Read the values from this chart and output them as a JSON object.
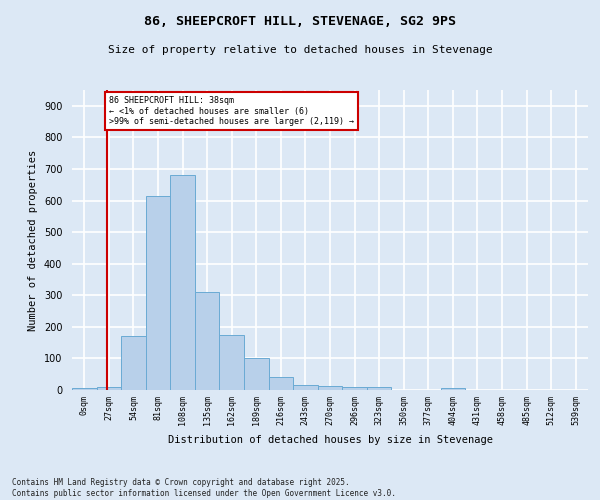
{
  "title_line1": "86, SHEEPCROFT HILL, STEVENAGE, SG2 9PS",
  "title_line2": "Size of property relative to detached houses in Stevenage",
  "xlabel": "Distribution of detached houses by size in Stevenage",
  "ylabel": "Number of detached properties",
  "bin_labels": [
    "0sqm",
    "27sqm",
    "54sqm",
    "81sqm",
    "108sqm",
    "135sqm",
    "162sqm",
    "189sqm",
    "216sqm",
    "243sqm",
    "270sqm",
    "296sqm",
    "323sqm",
    "350sqm",
    "377sqm",
    "404sqm",
    "431sqm",
    "458sqm",
    "485sqm",
    "512sqm",
    "539sqm"
  ],
  "bar_values": [
    5,
    10,
    170,
    615,
    680,
    310,
    175,
    100,
    40,
    15,
    12,
    10,
    10,
    1,
    0,
    5,
    0,
    0,
    0,
    0,
    0
  ],
  "bar_color": "#b8d0ea",
  "bar_edge_color": "#6aaad4",
  "bar_width": 1.0,
  "vline_x": 1.41,
  "vline_color": "#cc0000",
  "annotation_text": "86 SHEEPCROFT HILL: 38sqm\n← <1% of detached houses are smaller (6)\n>99% of semi-detached houses are larger (2,119) →",
  "annotation_box_color": "#ffffff",
  "annotation_box_edge": "#cc0000",
  "ylim": [
    0,
    950
  ],
  "yticks": [
    0,
    100,
    200,
    300,
    400,
    500,
    600,
    700,
    800,
    900
  ],
  "bg_color": "#dce8f5",
  "plot_bg_color": "#dce8f5",
  "grid_color": "#ffffff",
  "fig_bg_color": "#dce8f5",
  "footnote": "Contains HM Land Registry data © Crown copyright and database right 2025.\nContains public sector information licensed under the Open Government Licence v3.0."
}
